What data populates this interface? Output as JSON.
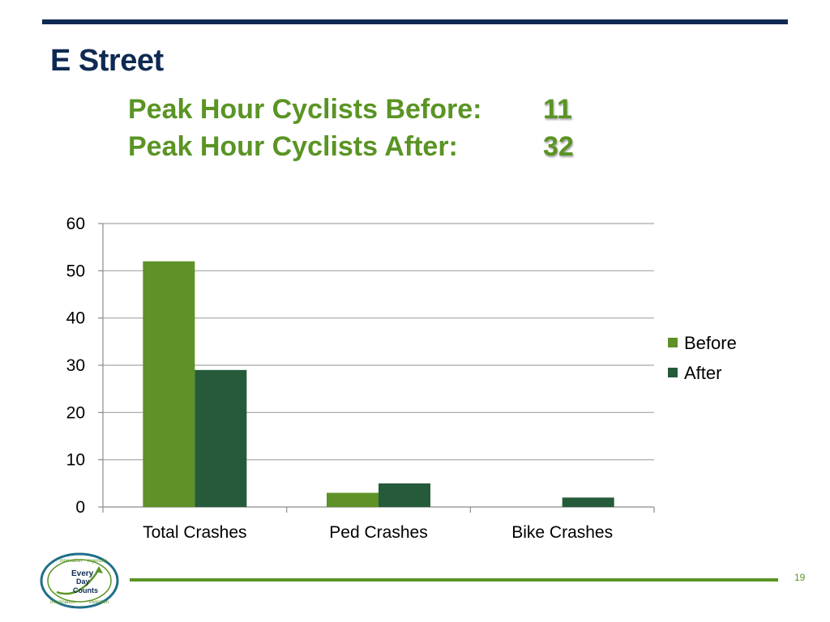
{
  "slide": {
    "title": "E Street",
    "page_number": "19"
  },
  "stats": [
    {
      "label": "Peak Hour Cyclists Before:",
      "value": "11"
    },
    {
      "label": "Peak Hour Cyclists After:",
      "value": "32"
    }
  ],
  "logo": {
    "center_text_1": "Every",
    "center_text_2": "Day",
    "center_text_3": "Counts",
    "ring_words": [
      "innovation",
      "ingenuity",
      "imagination",
      "invention"
    ]
  },
  "colors": {
    "title": "#0f2a52",
    "accent_green": "#5a9424",
    "before": "#5e9127",
    "after": "#255b3a"
  },
  "chart_data": {
    "type": "bar",
    "categories": [
      "Total Crashes",
      "Ped Crashes",
      "Bike Crashes"
    ],
    "series": [
      {
        "name": "Before",
        "values": [
          52,
          3,
          0
        ]
      },
      {
        "name": "After",
        "values": [
          29,
          5,
          2
        ]
      }
    ],
    "ylim": [
      0,
      60
    ],
    "yticks": [
      0,
      10,
      20,
      30,
      40,
      50,
      60
    ],
    "grid": true,
    "legend": "right"
  }
}
